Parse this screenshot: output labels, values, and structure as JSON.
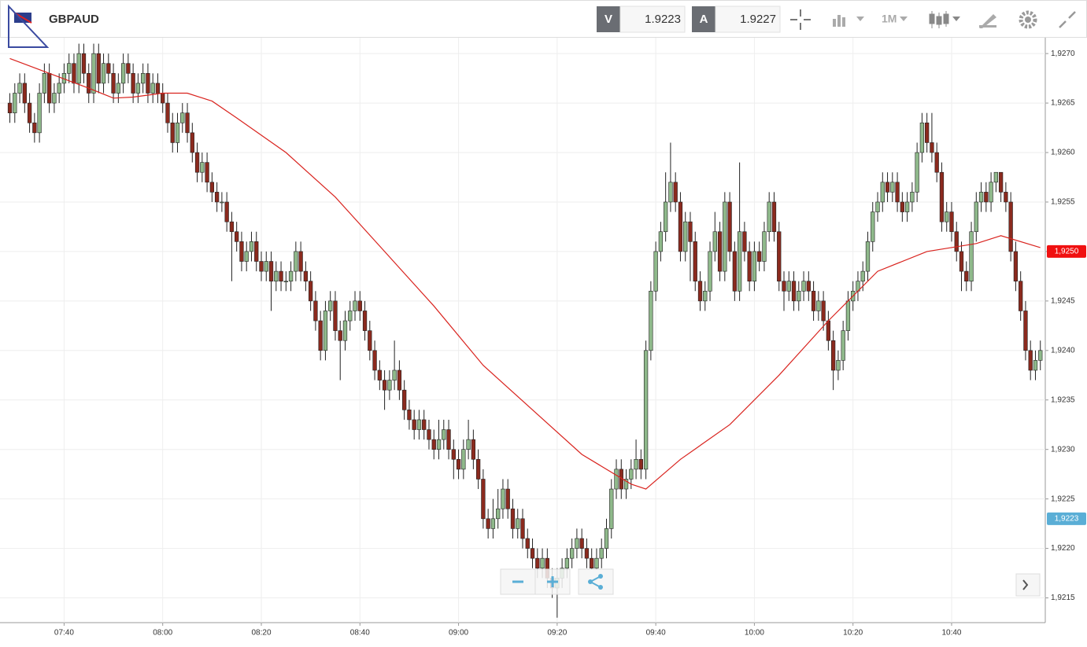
{
  "header": {
    "symbol": "GBPAUD",
    "bid_label": "V",
    "bid": "1.9223",
    "ask_label": "A",
    "ask": "1.9227",
    "timeframe": "1M"
  },
  "chart_data": {
    "type": "candlestick",
    "up_color": "#8fb98b",
    "down_color": "#8b2a1e",
    "grid": true,
    "xlim": [
      "07:27",
      "10:59"
    ],
    "xticks": [
      "07:40",
      "08:00",
      "08:20",
      "08:40",
      "09:00",
      "09:20",
      "09:40",
      "10:00",
      "10:20",
      "10:40"
    ],
    "ylim": [
      1.92125,
      1.92716
    ],
    "yticks": [
      {
        "value": 1.9215,
        "label": "1,9215"
      },
      {
        "value": 1.922,
        "label": "1,9220"
      },
      {
        "value": 1.9225,
        "label": "1,9225"
      },
      {
        "value": 1.923,
        "label": "1,9230"
      },
      {
        "value": 1.9235,
        "label": "1,9235"
      },
      {
        "value": 1.924,
        "label": "1,9240"
      },
      {
        "value": 1.9245,
        "label": "1,9245"
      },
      {
        "value": 1.925,
        "label": "1,9250"
      },
      {
        "value": 1.9255,
        "label": "1,9255"
      },
      {
        "value": 1.926,
        "label": "1,9260"
      },
      {
        "value": 1.9265,
        "label": "1,9265"
      },
      {
        "value": 1.927,
        "label": "1,9270"
      }
    ],
    "x": [
      "07:29",
      "07:30",
      "07:31",
      "07:32",
      "07:33",
      "07:34",
      "07:35",
      "07:36",
      "07:37",
      "07:38",
      "07:39",
      "07:40",
      "07:41",
      "07:42",
      "07:43",
      "07:44",
      "07:45",
      "07:46",
      "07:47",
      "07:48",
      "07:49",
      "07:50",
      "07:51",
      "07:52",
      "07:53",
      "07:54",
      "07:55",
      "07:56",
      "07:57",
      "07:58",
      "07:59",
      "08:00",
      "08:01",
      "08:02",
      "08:03",
      "08:04",
      "08:05",
      "08:06",
      "08:07",
      "08:08",
      "08:09",
      "08:10",
      "08:11",
      "08:12",
      "08:13",
      "08:14",
      "08:15",
      "08:16",
      "08:17",
      "08:18",
      "08:19",
      "08:20",
      "08:21",
      "08:22",
      "08:23",
      "08:24",
      "08:25",
      "08:26",
      "08:27",
      "08:28",
      "08:29",
      "08:30",
      "08:31",
      "08:32",
      "08:33",
      "08:34",
      "08:35",
      "08:36",
      "08:37",
      "08:38",
      "08:39",
      "08:40",
      "08:41",
      "08:42",
      "08:43",
      "08:44",
      "08:45",
      "08:46",
      "08:47",
      "08:48",
      "08:49",
      "08:50",
      "08:51",
      "08:52",
      "08:53",
      "08:54",
      "08:55",
      "08:56",
      "08:57",
      "08:58",
      "08:59",
      "09:00",
      "09:01",
      "09:02",
      "09:03",
      "09:04",
      "09:05",
      "09:06",
      "09:07",
      "09:08",
      "09:09",
      "09:10",
      "09:11",
      "09:12",
      "09:13",
      "09:14",
      "09:15",
      "09:16",
      "09:17",
      "09:18",
      "09:19",
      "09:20",
      "09:21",
      "09:22",
      "09:23",
      "09:24",
      "09:25",
      "09:26",
      "09:27",
      "09:28",
      "09:29",
      "09:30",
      "09:31",
      "09:32",
      "09:33",
      "09:34",
      "09:35",
      "09:36",
      "09:37",
      "09:38",
      "09:39",
      "09:40",
      "09:41",
      "09:42",
      "09:43",
      "09:44",
      "09:45",
      "09:46",
      "09:47",
      "09:48",
      "09:49",
      "09:50",
      "09:51",
      "09:52",
      "09:53",
      "09:54",
      "09:55",
      "09:56",
      "09:57",
      "09:58",
      "09:59",
      "10:00",
      "10:01",
      "10:02",
      "10:03",
      "10:04",
      "10:05",
      "10:06",
      "10:07",
      "10:08",
      "10:09",
      "10:10",
      "10:11",
      "10:12",
      "10:13",
      "10:14",
      "10:15",
      "10:16",
      "10:17",
      "10:18",
      "10:19",
      "10:20",
      "10:21",
      "10:22",
      "10:23",
      "10:24",
      "10:25",
      "10:26",
      "10:27",
      "10:28",
      "10:29",
      "10:30",
      "10:31",
      "10:32",
      "10:33",
      "10:34",
      "10:35",
      "10:36",
      "10:37",
      "10:38",
      "10:39",
      "10:40",
      "10:41",
      "10:42",
      "10:43",
      "10:44",
      "10:45",
      "10:46",
      "10:47",
      "10:48",
      "10:49",
      "10:50",
      "10:51",
      "10:52",
      "10:53",
      "10:54",
      "10:55",
      "10:56",
      "10:57",
      "10:58"
    ],
    "open": [
      1.9265,
      1.9264,
      1.9266,
      1.9267,
      1.9265,
      1.9263,
      1.9262,
      1.9266,
      1.9268,
      1.9265,
      1.9266,
      1.9267,
      1.9268,
      1.9269,
      1.9267,
      1.927,
      1.9268,
      1.9266,
      1.927,
      1.9267,
      1.9269,
      1.9268,
      1.9266,
      1.9267,
      1.9269,
      1.9268,
      1.9266,
      1.9267,
      1.9268,
      1.9266,
      1.9267,
      1.9266,
      1.9265,
      1.9263,
      1.9261,
      1.9263,
      1.9264,
      1.9262,
      1.926,
      1.9258,
      1.9259,
      1.9257,
      1.9256,
      1.9255,
      1.9255,
      1.9253,
      1.9252,
      1.9251,
      1.9249,
      1.925,
      1.9251,
      1.9249,
      1.9248,
      1.9249,
      1.9247,
      1.9248,
      1.9247,
      1.9247,
      1.9248,
      1.925,
      1.9248,
      1.9247,
      1.9245,
      1.9243,
      1.924,
      1.9244,
      1.9245,
      1.9242,
      1.9241,
      1.9243,
      1.9244,
      1.9245,
      1.9244,
      1.9242,
      1.924,
      1.9238,
      1.9237,
      1.9236,
      1.9237,
      1.9238,
      1.9236,
      1.9234,
      1.9233,
      1.9232,
      1.9233,
      1.9232,
      1.9231,
      1.923,
      1.9231,
      1.9232,
      1.923,
      1.9229,
      1.9228,
      1.923,
      1.9231,
      1.9229,
      1.9227,
      1.9223,
      1.9222,
      1.9223,
      1.9224,
      1.9226,
      1.9224,
      1.9222,
      1.9223,
      1.9221,
      1.922,
      1.9219,
      1.9218,
      1.9219,
      1.9217,
      1.9216,
      1.9217,
      1.9218,
      1.9219,
      1.922,
      1.9221,
      1.922,
      1.9219,
      1.9218,
      1.9219,
      1.922,
      1.9222,
      1.9226,
      1.9228,
      1.9226,
      1.9227,
      1.9228,
      1.9229,
      1.9228,
      1.924,
      1.9246,
      1.925,
      1.9252,
      1.9255,
      1.9257,
      1.9255,
      1.925,
      1.9253,
      1.9251,
      1.9247,
      1.9245,
      1.9246,
      1.925,
      1.9252,
      1.9248,
      1.9255,
      1.925,
      1.9246,
      1.9252,
      1.925,
      1.9247,
      1.925,
      1.9249,
      1.9252,
      1.9255,
      1.9252,
      1.9247,
      1.9246,
      1.9247,
      1.9245,
      1.9246,
      1.9247,
      1.9246,
      1.9244,
      1.9245,
      1.9243,
      1.9241,
      1.9238,
      1.9239,
      1.9242,
      1.9245,
      1.9246,
      1.9247,
      1.9248,
      1.9251,
      1.9254,
      1.9255,
      1.9257,
      1.9256,
      1.9257,
      1.9255,
      1.9254,
      1.9255,
      1.9256,
      1.926,
      1.9263,
      1.9261,
      1.926,
      1.9258,
      1.9253,
      1.9254,
      1.9252,
      1.925,
      1.9248,
      1.9247,
      1.9252,
      1.9255,
      1.9256,
      1.9255,
      1.9257,
      1.9258,
      1.9256,
      1.9255,
      1.925,
      1.9247,
      1.9244,
      1.924,
      1.9238,
      1.9239
    ],
    "high": [
      1.9266,
      1.9267,
      1.9268,
      1.9268,
      1.9266,
      1.9264,
      1.9267,
      1.9269,
      1.9269,
      1.9267,
      1.9268,
      1.9269,
      1.927,
      1.927,
      1.9271,
      1.9271,
      1.9269,
      1.9271,
      1.9271,
      1.927,
      1.927,
      1.9269,
      1.9268,
      1.927,
      1.927,
      1.9269,
      1.9268,
      1.9269,
      1.9269,
      1.9268,
      1.9268,
      1.9267,
      1.9266,
      1.9264,
      1.9264,
      1.9265,
      1.9265,
      1.9263,
      1.9261,
      1.926,
      1.926,
      1.9258,
      1.9257,
      1.9256,
      1.9256,
      1.9254,
      1.9253,
      1.9252,
      1.9251,
      1.9252,
      1.9252,
      1.925,
      1.925,
      1.925,
      1.9249,
      1.9249,
      1.9248,
      1.9249,
      1.9251,
      1.9251,
      1.9249,
      1.9248,
      1.9246,
      1.9244,
      1.9245,
      1.9246,
      1.9246,
      1.9243,
      1.9244,
      1.9245,
      1.9246,
      1.9246,
      1.9245,
      1.9243,
      1.9241,
      1.9239,
      1.9238,
      1.9238,
      1.9241,
      1.9239,
      1.9237,
      1.9235,
      1.9234,
      1.9234,
      1.9234,
      1.9233,
      1.9232,
      1.9233,
      1.9233,
      1.9233,
      1.9231,
      1.923,
      1.9231,
      1.9233,
      1.9232,
      1.923,
      1.9228,
      1.9224,
      1.9225,
      1.9226,
      1.9227,
      1.9227,
      1.9225,
      1.9224,
      1.9224,
      1.9222,
      1.9221,
      1.922,
      1.922,
      1.922,
      1.9218,
      1.9218,
      1.9219,
      1.922,
      1.9221,
      1.9222,
      1.9222,
      1.9221,
      1.922,
      1.922,
      1.9221,
      1.9223,
      1.9227,
      1.9229,
      1.9229,
      1.9228,
      1.9229,
      1.9231,
      1.923,
      1.9241,
      1.9247,
      1.9251,
      1.9253,
      1.9258,
      1.9261,
      1.9258,
      1.9256,
      1.9254,
      1.9254,
      1.9252,
      1.9248,
      1.9247,
      1.9251,
      1.9254,
      1.9253,
      1.9256,
      1.9256,
      1.9251,
      1.9259,
      1.9253,
      1.9251,
      1.9251,
      1.9251,
      1.9253,
      1.9256,
      1.9256,
      1.9253,
      1.9248,
      1.9248,
      1.9248,
      1.9247,
      1.9248,
      1.9248,
      1.9247,
      1.9246,
      1.9246,
      1.9244,
      1.9242,
      1.924,
      1.9243,
      1.9246,
      1.9247,
      1.9248,
      1.9249,
      1.9252,
      1.9255,
      1.9256,
      1.9258,
      1.9258,
      1.9258,
      1.9258,
      1.9256,
      1.9256,
      1.9257,
      1.9261,
      1.9264,
      1.9264,
      1.9264,
      1.9261,
      1.9259,
      1.9255,
      1.9255,
      1.9253,
      1.9251,
      1.9249,
      1.9253,
      1.9256,
      1.9257,
      1.9257,
      1.9258,
      1.9258,
      1.9258,
      1.9257,
      1.9256,
      1.9251,
      1.9248,
      1.9245,
      1.9241,
      1.924,
      1.9241
    ],
    "low": [
      1.9263,
      1.9263,
      1.9265,
      1.9264,
      1.9262,
      1.9261,
      1.9261,
      1.9265,
      1.9264,
      1.9264,
      1.9265,
      1.9266,
      1.9267,
      1.9266,
      1.9266,
      1.9267,
      1.9265,
      1.9265,
      1.9266,
      1.9266,
      1.9267,
      1.9265,
      1.9265,
      1.9266,
      1.9267,
      1.9265,
      1.9265,
      1.9266,
      1.9265,
      1.9265,
      1.9265,
      1.9264,
      1.9262,
      1.926,
      1.926,
      1.9262,
      1.9261,
      1.9259,
      1.9257,
      1.9257,
      1.9256,
      1.9255,
      1.9254,
      1.9254,
      1.9252,
      1.9247,
      1.925,
      1.9248,
      1.9248,
      1.9249,
      1.9248,
      1.9247,
      1.9247,
      1.9244,
      1.9246,
      1.9246,
      1.9246,
      1.9246,
      1.9247,
      1.9247,
      1.9246,
      1.9244,
      1.9242,
      1.9239,
      1.9239,
      1.9243,
      1.9241,
      1.9237,
      1.924,
      1.9242,
      1.9243,
      1.9243,
      1.9241,
      1.9239,
      1.9237,
      1.9236,
      1.9234,
      1.9235,
      1.9236,
      1.9235,
      1.9233,
      1.9232,
      1.9231,
      1.9231,
      1.9231,
      1.923,
      1.9229,
      1.9229,
      1.923,
      1.9229,
      1.9227,
      1.9227,
      1.9227,
      1.9229,
      1.9228,
      1.9226,
      1.9222,
      1.9221,
      1.9221,
      1.9222,
      1.9223,
      1.9223,
      1.9221,
      1.9221,
      1.922,
      1.9219,
      1.9218,
      1.9217,
      1.9217,
      1.9216,
      1.9215,
      1.9213,
      1.9216,
      1.9217,
      1.9218,
      1.9219,
      1.9219,
      1.9218,
      1.9217,
      1.9217,
      1.9218,
      1.9219,
      1.9221,
      1.9225,
      1.9225,
      1.9225,
      1.9226,
      1.9227,
      1.9227,
      1.9227,
      1.9239,
      1.9245,
      1.9249,
      1.9251,
      1.9254,
      1.9254,
      1.9249,
      1.9249,
      1.9247,
      1.9246,
      1.9244,
      1.9244,
      1.9245,
      1.9249,
      1.9247,
      1.9247,
      1.9249,
      1.9245,
      1.9245,
      1.9249,
      1.9246,
      1.9246,
      1.9248,
      1.9248,
      1.9251,
      1.9251,
      1.9246,
      1.9244,
      1.9245,
      1.9244,
      1.9244,
      1.9245,
      1.9245,
      1.9243,
      1.9243,
      1.9242,
      1.924,
      1.9236,
      1.9237,
      1.9238,
      1.9241,
      1.9244,
      1.9245,
      1.9246,
      1.9247,
      1.925,
      1.9253,
      1.9254,
      1.9255,
      1.9255,
      1.9254,
      1.9253,
      1.9253,
      1.9254,
      1.9255,
      1.9259,
      1.926,
      1.9259,
      1.9257,
      1.9252,
      1.9252,
      1.9251,
      1.9249,
      1.9246,
      1.9246,
      1.9246,
      1.9251,
      1.9254,
      1.9254,
      1.9254,
      1.9256,
      1.9255,
      1.9254,
      1.9249,
      1.9246,
      1.9243,
      1.9239,
      1.9237,
      1.9237,
      1.9238
    ],
    "close": [
      1.9264,
      1.9266,
      1.9267,
      1.9265,
      1.9263,
      1.9262,
      1.9266,
      1.9268,
      1.9265,
      1.9266,
      1.9267,
      1.9268,
      1.9269,
      1.9267,
      1.927,
      1.9268,
      1.9266,
      1.927,
      1.9267,
      1.9269,
      1.9268,
      1.9266,
      1.9267,
      1.9269,
      1.9268,
      1.9266,
      1.9267,
      1.9268,
      1.9266,
      1.9267,
      1.9266,
      1.9265,
      1.9263,
      1.9261,
      1.9263,
      1.9264,
      1.9262,
      1.926,
      1.9258,
      1.9259,
      1.9257,
      1.9256,
      1.9255,
      1.9255,
      1.9253,
      1.9252,
      1.9251,
      1.9249,
      1.925,
      1.9251,
      1.9249,
      1.9248,
      1.9249,
      1.9247,
      1.9248,
      1.9247,
      1.9247,
      1.9248,
      1.925,
      1.9248,
      1.9247,
      1.9245,
      1.9243,
      1.924,
      1.9244,
      1.9245,
      1.9242,
      1.9241,
      1.9243,
      1.9244,
      1.9245,
      1.9244,
      1.9242,
      1.924,
      1.9238,
      1.9237,
      1.9236,
      1.9237,
      1.9238,
      1.9236,
      1.9234,
      1.9233,
      1.9232,
      1.9233,
      1.9232,
      1.9231,
      1.923,
      1.9231,
      1.9232,
      1.923,
      1.9229,
      1.9228,
      1.923,
      1.9231,
      1.9229,
      1.9227,
      1.9223,
      1.9222,
      1.9223,
      1.9224,
      1.9226,
      1.9224,
      1.9222,
      1.9223,
      1.9221,
      1.922,
      1.9219,
      1.9218,
      1.9219,
      1.9217,
      1.9216,
      1.9217,
      1.9218,
      1.9219,
      1.922,
      1.9221,
      1.922,
      1.9219,
      1.9218,
      1.9219,
      1.922,
      1.9222,
      1.9226,
      1.9228,
      1.9226,
      1.9227,
      1.9228,
      1.9229,
      1.9228,
      1.924,
      1.9246,
      1.925,
      1.9252,
      1.9255,
      1.9257,
      1.9255,
      1.925,
      1.9253,
      1.9251,
      1.9247,
      1.9245,
      1.9246,
      1.925,
      1.9252,
      1.9248,
      1.9255,
      1.925,
      1.9246,
      1.9252,
      1.925,
      1.9247,
      1.925,
      1.9249,
      1.9252,
      1.9255,
      1.9252,
      1.9247,
      1.9246,
      1.9247,
      1.9245,
      1.9246,
      1.9247,
      1.9246,
      1.9244,
      1.9245,
      1.9243,
      1.9241,
      1.9238,
      1.9239,
      1.9242,
      1.9245,
      1.9246,
      1.9247,
      1.9248,
      1.9251,
      1.9254,
      1.9255,
      1.9257,
      1.9256,
      1.9257,
      1.9255,
      1.9254,
      1.9255,
      1.9256,
      1.926,
      1.9263,
      1.9261,
      1.926,
      1.9258,
      1.9253,
      1.9254,
      1.9252,
      1.925,
      1.9248,
      1.9247,
      1.9252,
      1.9255,
      1.9256,
      1.9255,
      1.9257,
      1.9258,
      1.9256,
      1.9255,
      1.925,
      1.9247,
      1.9244,
      1.924,
      1.9238,
      1.9239,
      1.924
    ],
    "moving_average": {
      "color": "#d9231e",
      "x": [
        "07:29",
        "07:45",
        "07:50",
        "07:54",
        "08:00",
        "08:05",
        "08:10",
        "08:15",
        "08:25",
        "08:35",
        "08:45",
        "08:55",
        "09:05",
        "09:15",
        "09:25",
        "09:35",
        "09:38",
        "09:45",
        "09:55",
        "10:05",
        "10:15",
        "10:25",
        "10:35",
        "10:45",
        "10:50",
        "10:58"
      ],
      "values": [
        1.92695,
        1.92665,
        1.92655,
        1.92656,
        1.9266,
        1.9266,
        1.92652,
        1.92635,
        1.926,
        1.92555,
        1.925,
        1.92445,
        1.92385,
        1.9234,
        1.92295,
        1.92265,
        1.9226,
        1.9229,
        1.92325,
        1.92375,
        1.9243,
        1.9248,
        1.925,
        1.92508,
        1.92516,
        1.92504
      ]
    },
    "price_tags": [
      {
        "value": 1.925,
        "label": "1,9250",
        "color": "#f01010"
      },
      {
        "value": 1.9223,
        "label": "1,9223",
        "color": "#5aaed6"
      }
    ]
  }
}
